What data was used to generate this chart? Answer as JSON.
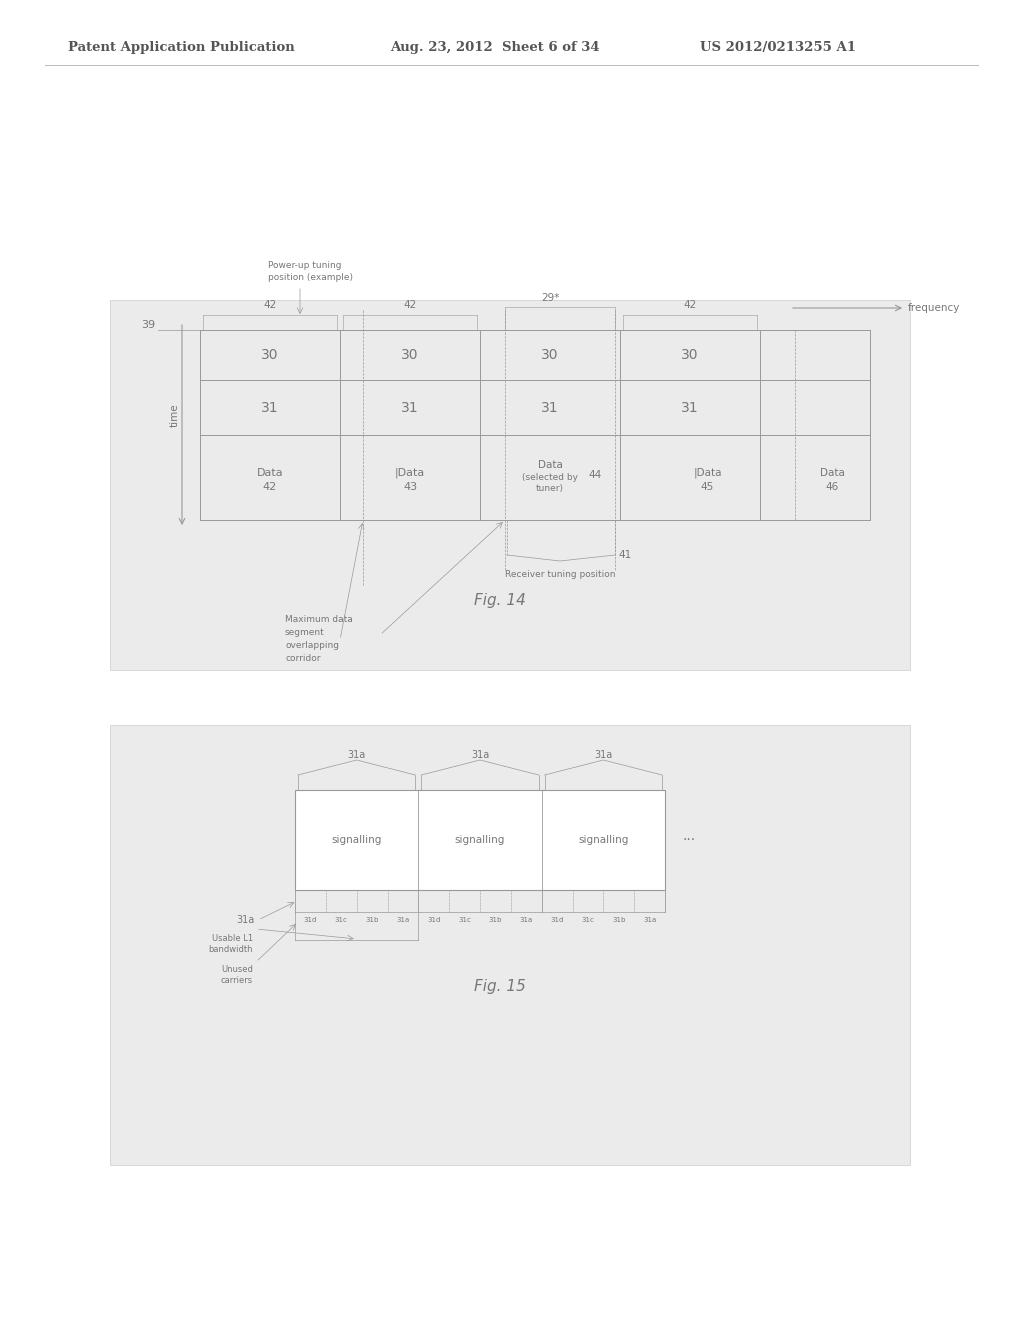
{
  "bg_color": "#d8d8d8",
  "page_bg": "#ffffff",
  "header_text": "Patent Application Publication",
  "header_date": "Aug. 23, 2012  Sheet 6 of 34",
  "header_patent": "US 2012/0213255 A1",
  "fig14_label": "Fig. 14",
  "fig15_label": "Fig. 15",
  "dc": "#999999",
  "tc": "#777777",
  "lc": "#bbbbbb",
  "hc": "#555555"
}
